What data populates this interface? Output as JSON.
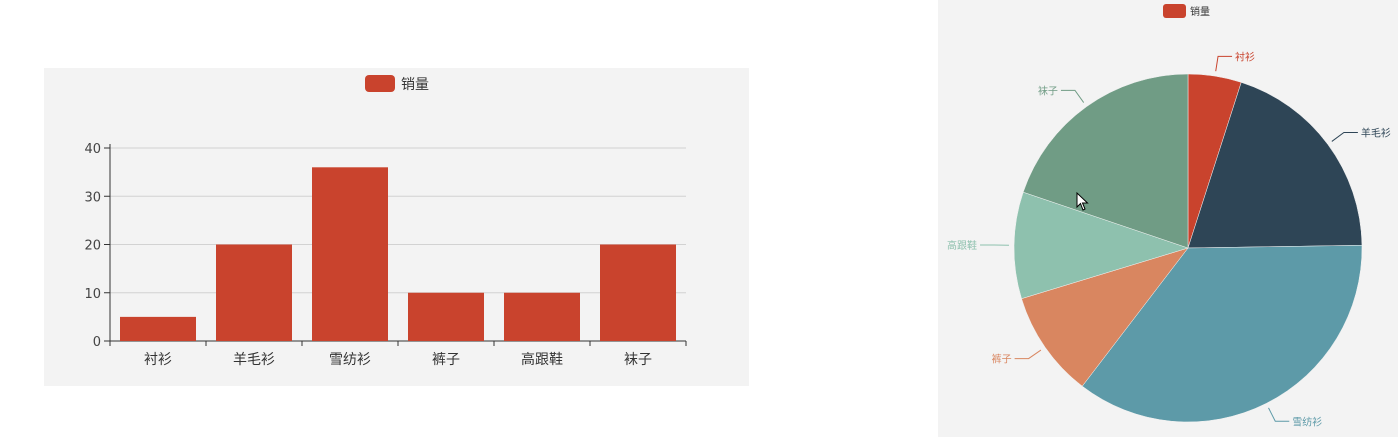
{
  "chart_data": [
    {
      "type": "bar",
      "legend": {
        "label": "销量",
        "placement": "top-center"
      },
      "categories": [
        "衬衫",
        "羊毛衫",
        "雪纺衫",
        "裤子",
        "高跟鞋",
        "袜子"
      ],
      "series": [
        {
          "name": "销量",
          "values": [
            5,
            20,
            36,
            10,
            10,
            20
          ]
        }
      ],
      "ylim": [
        0,
        40
      ],
      "yticks": [
        "0",
        "10",
        "20",
        "30",
        "40"
      ],
      "grid": true,
      "color": "#c9432d"
    },
    {
      "type": "pie",
      "legend": {
        "label": "销量",
        "placement": "top-center"
      },
      "slices": [
        {
          "label": "衬衫",
          "value": 5,
          "color": "#c9432d"
        },
        {
          "label": "羊毛衫",
          "value": 20,
          "color": "#2e4556"
        },
        {
          "label": "雪纺衫",
          "value": 36,
          "color": "#5d9aa8"
        },
        {
          "label": "裤子",
          "value": 10,
          "color": "#d98660"
        },
        {
          "label": "高跟鞋",
          "value": 10,
          "color": "#8ec1ae"
        },
        {
          "label": "袜子",
          "value": 20,
          "color": "#709c85"
        }
      ]
    }
  ]
}
